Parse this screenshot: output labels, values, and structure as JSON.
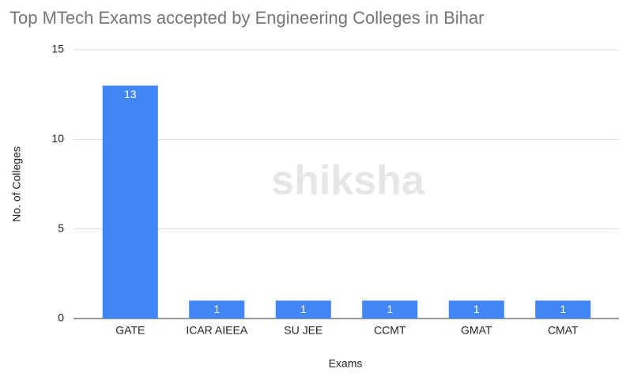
{
  "chart_data": {
    "type": "bar",
    "title": "Top MTech Exams accepted by Engineering Colleges in Bihar",
    "x_label": "Exams",
    "y_label": "No. of Colleges",
    "watermark": "shiksha",
    "categories": [
      "GATE",
      "ICAR AIEEA",
      "SU JEE",
      "CCMT",
      "GMAT",
      "CMAT"
    ],
    "values": [
      13,
      1,
      1,
      1,
      1,
      1
    ],
    "color": "#4285f4",
    "ylim": [
      0,
      15
    ],
    "yticks": [
      0,
      5,
      10,
      15
    ],
    "grid": true
  }
}
